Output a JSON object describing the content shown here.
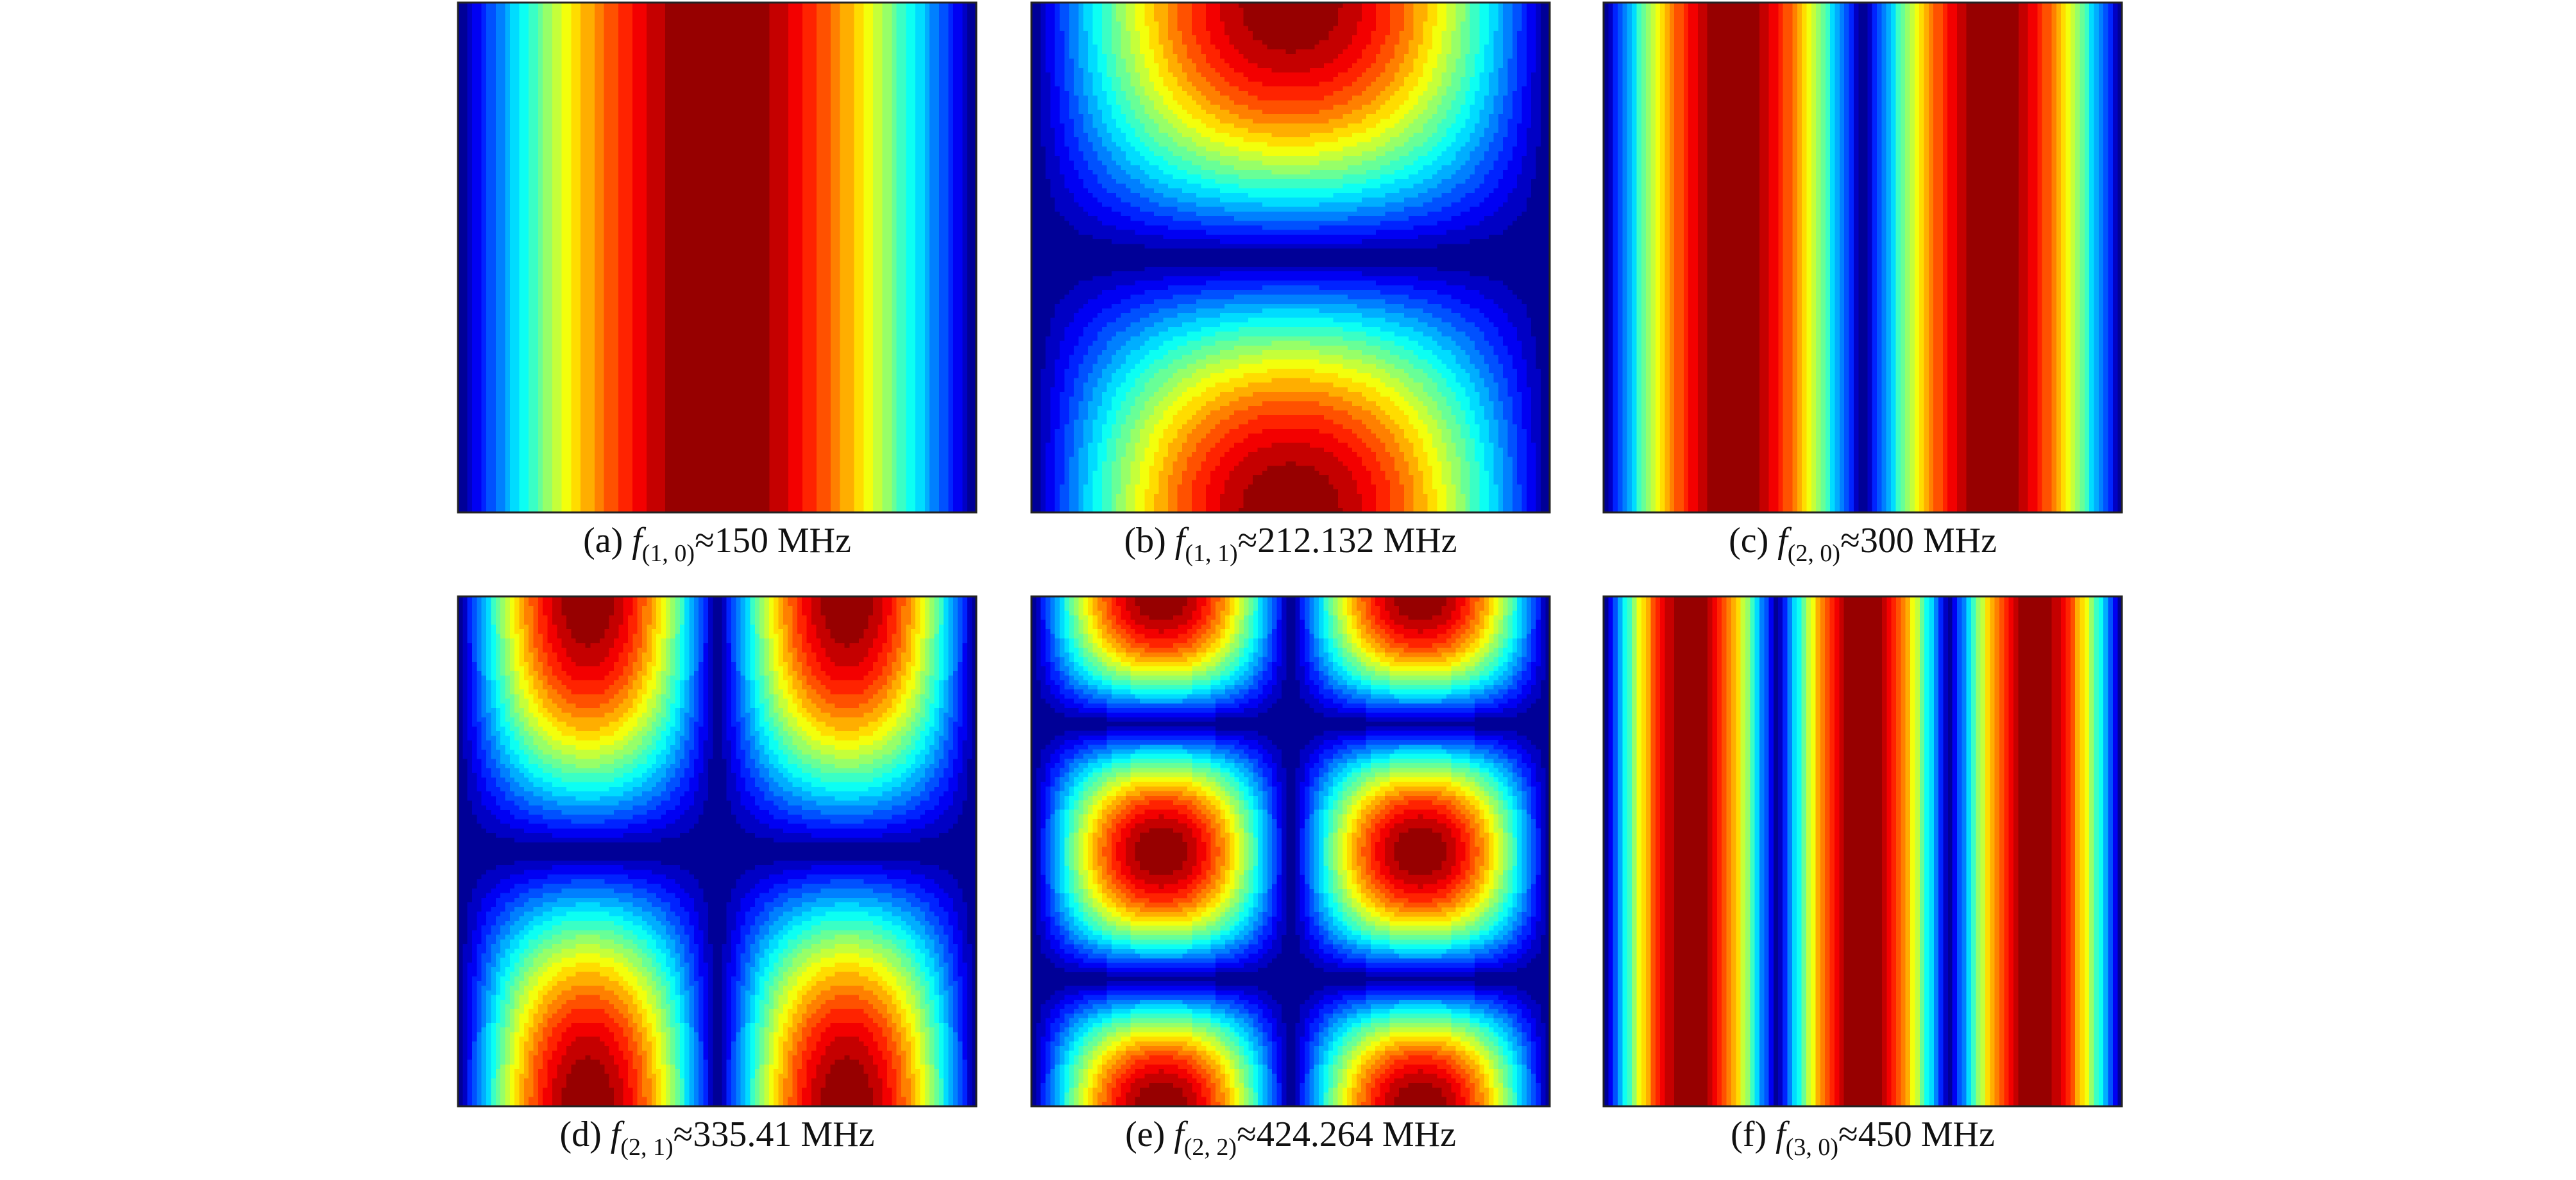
{
  "figure": {
    "panels": [
      {
        "label": "(a)",
        "symbol": "f",
        "subscript": "(1, 0)",
        "value": "≈150 MHz"
      },
      {
        "label": "(b)",
        "symbol": "f",
        "subscript": "(1, 1)",
        "value": "≈212.132 MHz"
      },
      {
        "label": "(c)",
        "symbol": "f",
        "subscript": "(2, 0)",
        "value": "≈300 MHz"
      },
      {
        "label": "(d)",
        "symbol": "f",
        "subscript": "(2, 1)",
        "value": "≈335.41 MHz"
      },
      {
        "label": "(e)",
        "symbol": "f",
        "subscript": "(2, 2)",
        "value": "≈424.264 MHz"
      },
      {
        "label": "(f)",
        "symbol": "f",
        "subscript": "(3, 0)",
        "value": "≈450 MHz"
      }
    ]
  }
}
